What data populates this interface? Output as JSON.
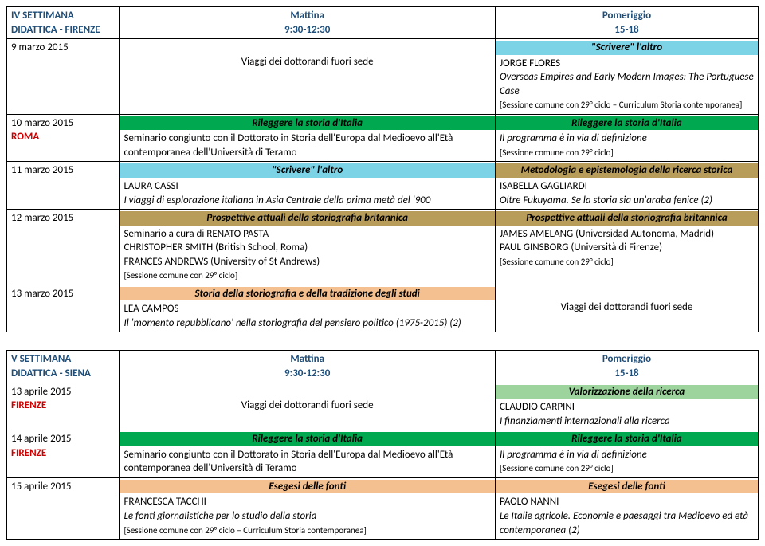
{
  "week4": {
    "header": {
      "left1": "IV SETTIMANA",
      "left2": "DIDATTICA - FIRENZE",
      "midTitle": "Mattina",
      "midTime": "9:30-12:30",
      "rightTitle": "Pomeriggio",
      "rightTime": "15-18"
    },
    "r1": {
      "date": "9 marzo 2015",
      "morn": "Viaggi dei dottorandi fuori sede",
      "afterBanner": "\"Scrivere\" l'altro",
      "afterL1": "JORGE FLORES",
      "afterL2": "Overseas Empires and Early Modern Images: The Portuguese Case",
      "afterNote": "[Sessione comune con 29° ciclo – Curriculum Storia contemporanea]"
    },
    "r2": {
      "date": "10 marzo 2015",
      "city": "ROMA",
      "mornBanner": "Rileggere la storia d'Italia",
      "mornL1": "Seminario congiunto con il Dottorato in Storia dell'Europa dal Medioevo all'Età contemporanea dell'Università di Teramo",
      "afterBanner": "Rileggere la storia d'Italia",
      "afterL1": "Il programma è in via di definizione",
      "afterNote": "[Sessione comune con 29° ciclo]"
    },
    "r3": {
      "date": "11 marzo 2015",
      "mornBanner": "\"Scrivere\" l'altro",
      "mornL1": "LAURA CASSI",
      "mornL2": "I viaggi di esplorazione italiana in Asia Centrale della prima metà del '900",
      "afterBanner": "Metodologia e epistemologia della ricerca storica",
      "afterL1": "ISABELLA GAGLIARDI",
      "afterL2": "Oltre Fukuyama. Se la storia sia un'araba fenice (2)"
    },
    "r4": {
      "date": "12 marzo 2015",
      "mornBanner": "Prospettive attuali della storiografia britannica",
      "mornL1": "Seminario a cura di RENATO PASTA",
      "mornL2": "CHRISTOPHER SMITH (British School, Roma)",
      "mornL3": "FRANCES ANDREWS (University of St Andrews)",
      "mornNote": "[Sessione comune con 29° ciclo]",
      "afterBanner": "Prospettive attuali della storiografia britannica",
      "afterL1": "JAMES AMELANG (Universidad Autonoma, Madrid)",
      "afterL2": "PAUL GINSBORG (Università di Firenze)",
      "afterNote": "[Sessione comune con 29° ciclo]"
    },
    "r5": {
      "date": "13 marzo 2015",
      "mornBanner": "Storia della storiografia e della tradizione degli studi",
      "mornL1": "LEA CAMPOS",
      "mornL2": "Il 'momento repubblicano' nella storiografia del pensiero politico (1975-2015) (2)",
      "after": "Viaggi dei dottorandi fuori sede"
    }
  },
  "week5": {
    "header": {
      "left1": "V SETTIMANA",
      "left2": "DIDATTICA - SIENA",
      "midTitle": "Mattina",
      "midTime": "9:30-12:30",
      "rightTitle": "Pomeriggio",
      "rightTime": "15-18"
    },
    "r1": {
      "date": "13 aprile 2015",
      "city": "FIRENZE",
      "morn": "Viaggi dei dottorandi fuori sede",
      "afterBanner": "Valorizzazione della ricerca",
      "afterL1": "CLAUDIO CARPINI",
      "afterL2": "I finanziamenti internazionali alla ricerca"
    },
    "r2": {
      "date": "14 aprile 2015",
      "city": "FIRENZE",
      "mornBanner": "Rileggere la storia d'Italia",
      "mornL1": "Seminario congiunto con il Dottorato in Storia dell'Europa dal Medioevo all'Età contemporanea dell'Università di Teramo",
      "afterBanner": "Rileggere la storia d'Italia",
      "afterL1": "Il programma è in via di definizione",
      "afterNote": "[Sessione comune con 29° ciclo]"
    },
    "r3": {
      "date": "15 aprile 2015",
      "mornBanner": "Esegesi delle fonti",
      "mornL1": "FRANCESCA TACCHI",
      "mornL2": "Le fonti giornalistiche per lo studio della storia",
      "mornNote": "[Sessione comune con 29° ciclo – Curriculum Storia contemporanea]",
      "afterBanner": "Esegesi delle fonti",
      "afterL1": "PAOLO NANNI",
      "afterL2": "Le Italie agricole. Economie e paesaggi tra Medioevo ed età contemporanea (2)"
    }
  }
}
